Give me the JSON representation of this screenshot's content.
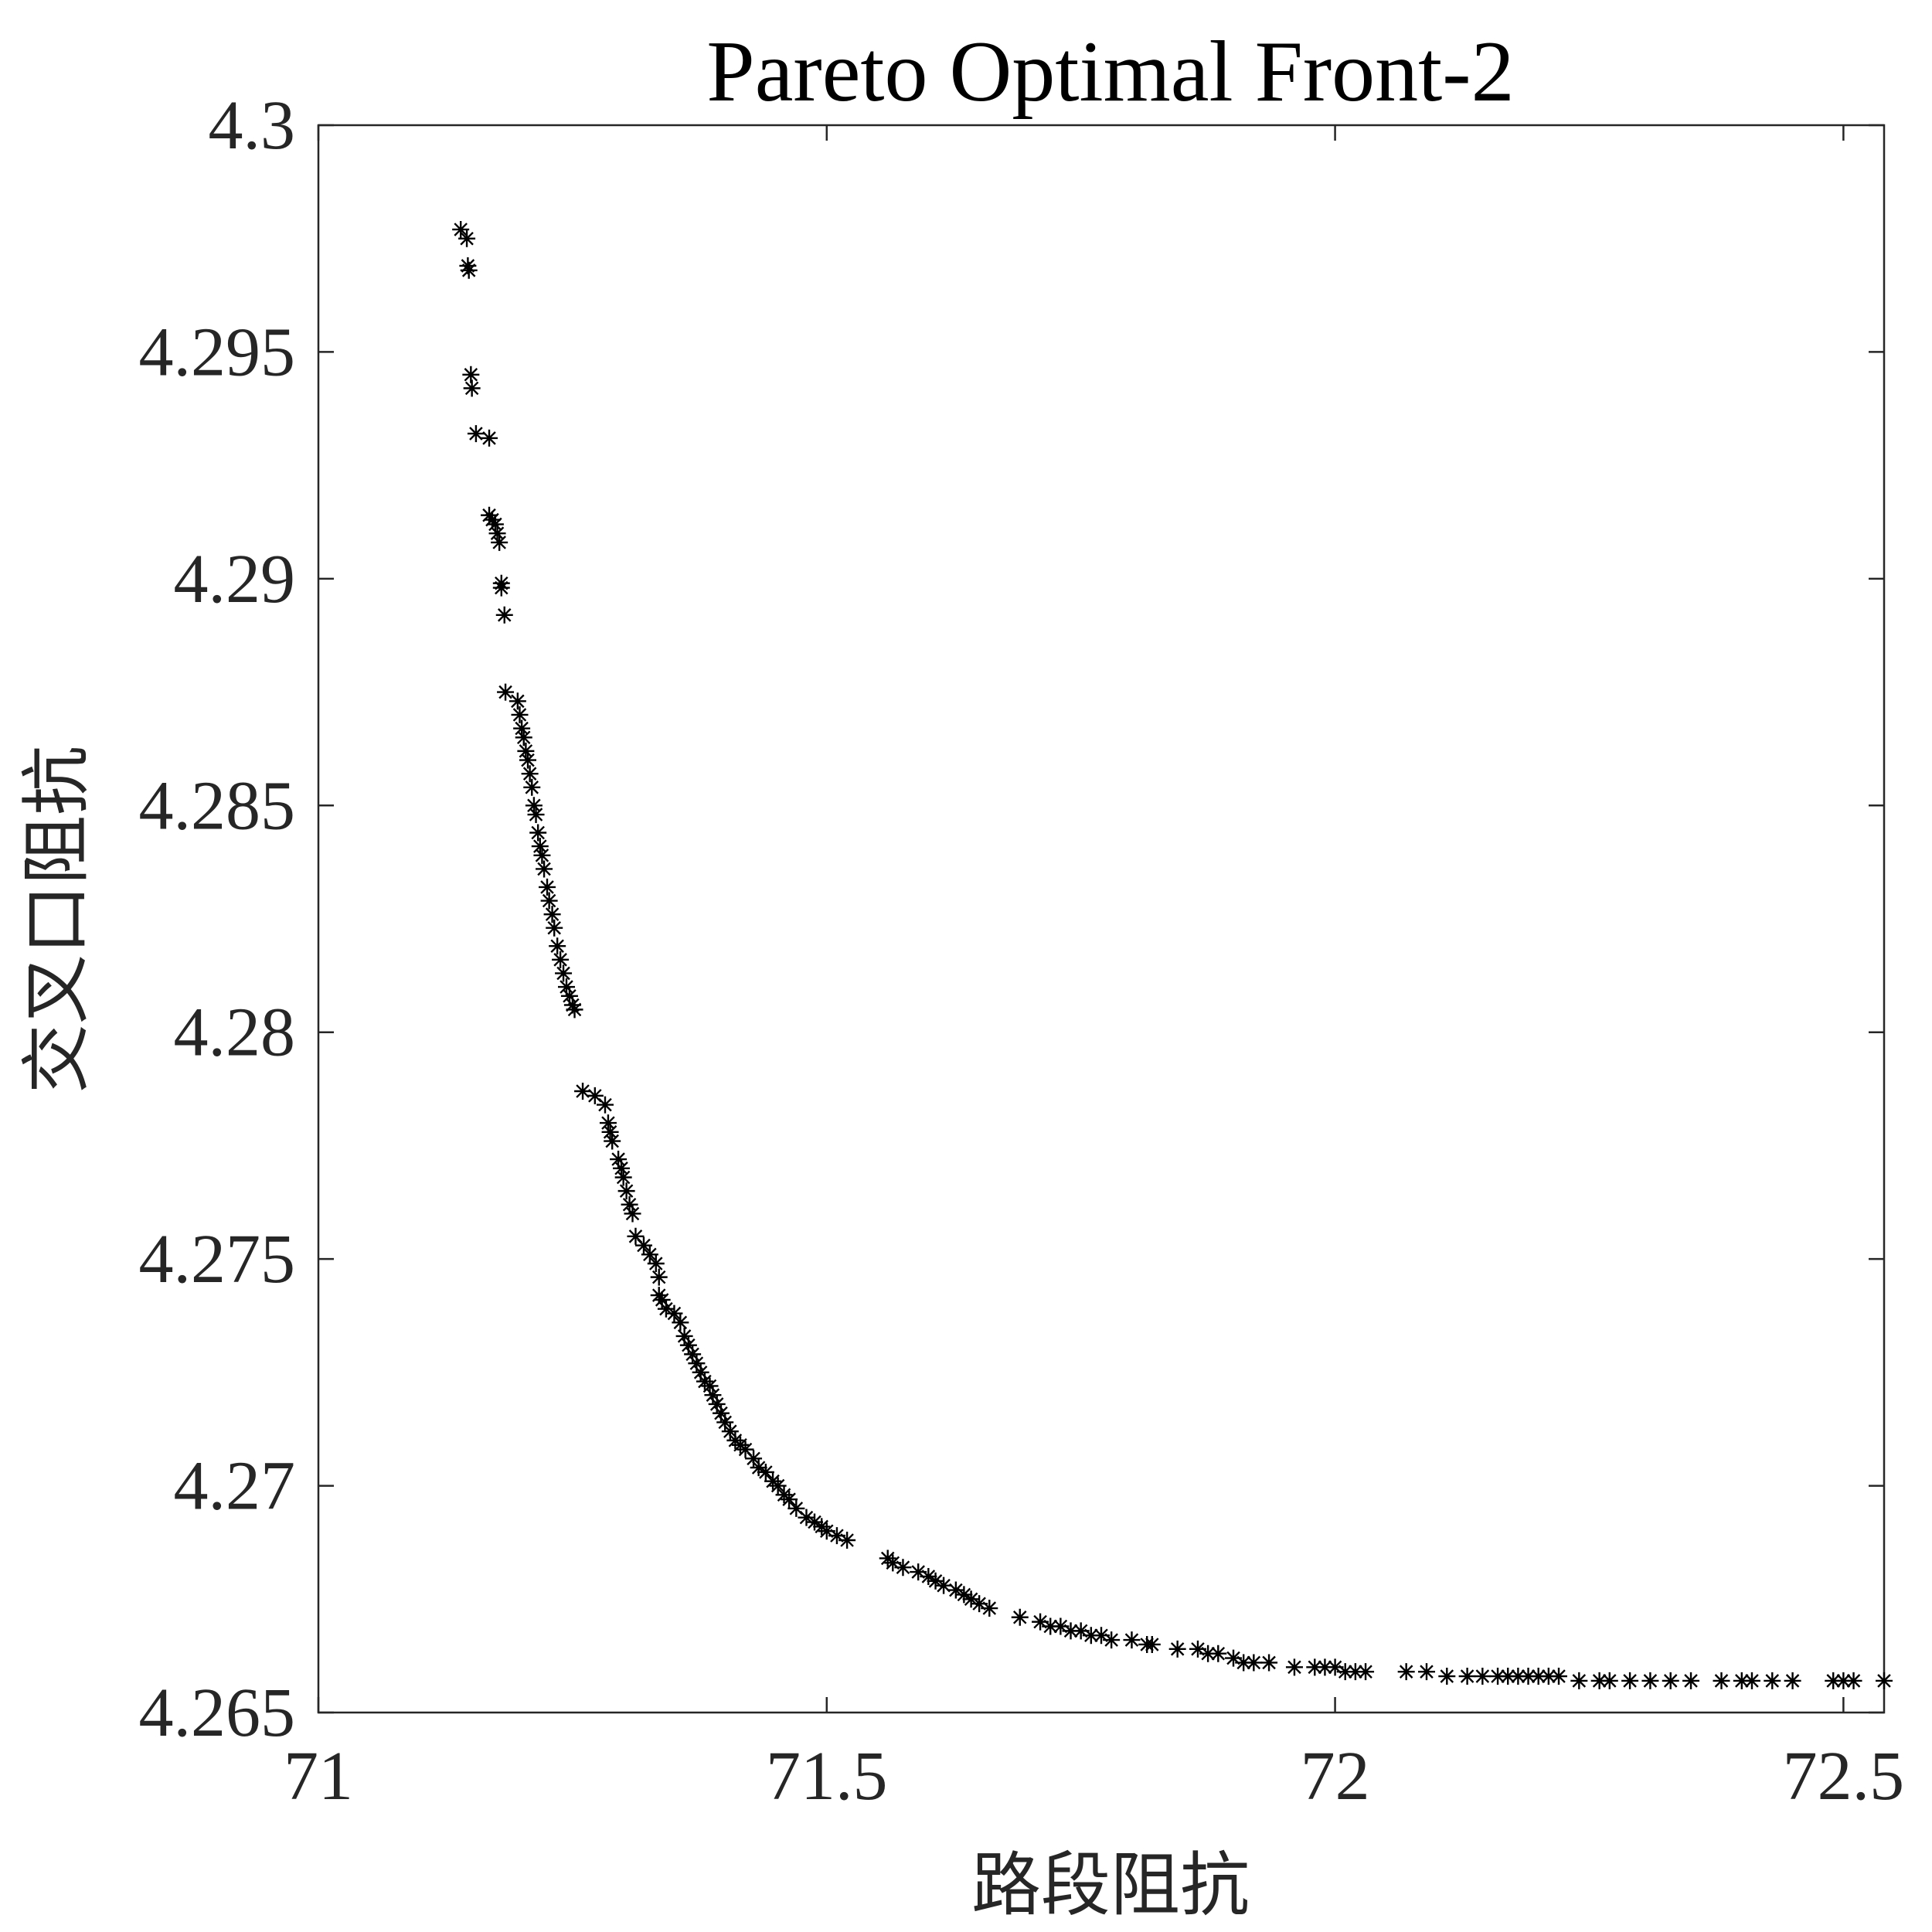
{
  "chart_data": {
    "type": "scatter",
    "title": "Pareto Optimal Front-2",
    "xlabel": "路段阻抗",
    "ylabel": "交叉口阻抗",
    "xlim": [
      71,
      72.54
    ],
    "ylim": [
      4.265,
      4.3
    ],
    "xticks": [
      "71",
      "71.5",
      "72",
      "72.5"
    ],
    "yticks": [
      "4.265",
      "4.27",
      "4.275",
      "4.28",
      "4.285",
      "4.29",
      "4.295",
      "4.3"
    ],
    "grid": false,
    "marker": "asterisk",
    "marker_color": "#000000",
    "series": [
      {
        "points": [
          [
            71.14,
            4.2977
          ],
          [
            71.146,
            4.2975
          ],
          [
            71.147,
            4.2969
          ],
          [
            71.148,
            4.2968
          ],
          [
            71.15,
            4.2945
          ],
          [
            71.151,
            4.2942
          ],
          [
            71.155,
            4.2932
          ],
          [
            71.168,
            4.2931
          ],
          [
            71.168,
            4.2914
          ],
          [
            71.171,
            4.2913
          ],
          [
            71.174,
            4.2912
          ],
          [
            71.176,
            4.291
          ],
          [
            71.178,
            4.2908
          ],
          [
            71.18,
            4.2899
          ],
          [
            71.18,
            4.2898
          ],
          [
            71.183,
            4.2892
          ],
          [
            71.184,
            4.2875
          ],
          [
            71.196,
            4.2873
          ],
          [
            71.198,
            4.287
          ],
          [
            71.2,
            4.2867
          ],
          [
            71.202,
            4.2865
          ],
          [
            71.204,
            4.2862
          ],
          [
            71.206,
            4.286
          ],
          [
            71.208,
            4.2857
          ],
          [
            71.21,
            4.2854
          ],
          [
            71.212,
            4.285
          ],
          [
            71.214,
            4.2848
          ],
          [
            71.216,
            4.2844
          ],
          [
            71.218,
            4.2841
          ],
          [
            71.22,
            4.2839
          ],
          [
            71.222,
            4.2836
          ],
          [
            71.225,
            4.2832
          ],
          [
            71.227,
            4.2829
          ],
          [
            71.23,
            4.2826
          ],
          [
            71.232,
            4.2823
          ],
          [
            71.235,
            4.2819
          ],
          [
            71.238,
            4.2816
          ],
          [
            71.241,
            4.2813
          ],
          [
            71.244,
            4.281
          ],
          [
            71.247,
            4.2808
          ],
          [
            71.25,
            4.2806
          ],
          [
            71.252,
            4.2805
          ],
          [
            71.26,
            4.2787
          ],
          [
            71.272,
            4.2786
          ],
          [
            71.282,
            4.2784
          ],
          [
            71.285,
            4.278
          ],
          [
            71.287,
            4.2778
          ],
          [
            71.289,
            4.2776
          ],
          [
            71.295,
            4.2772
          ],
          [
            71.298,
            4.277
          ],
          [
            71.3,
            4.2768
          ],
          [
            71.303,
            4.2765
          ],
          [
            71.306,
            4.2762
          ],
          [
            71.309,
            4.276
          ],
          [
            71.312,
            4.2755
          ],
          [
            71.32,
            4.2753
          ],
          [
            71.326,
            4.2751
          ],
          [
            71.332,
            4.2749
          ],
          [
            71.335,
            4.2746
          ],
          [
            71.335,
            4.2742
          ],
          [
            71.338,
            4.2741
          ],
          [
            71.342,
            4.2739
          ],
          [
            71.35,
            4.2738
          ],
          [
            71.356,
            4.2736
          ],
          [
            71.36,
            4.2733
          ],
          [
            71.364,
            4.2731
          ],
          [
            71.368,
            4.2729
          ],
          [
            71.372,
            4.2727
          ],
          [
            71.376,
            4.2725
          ],
          [
            71.38,
            4.2723
          ],
          [
            71.385,
            4.2722
          ],
          [
            71.388,
            4.272
          ],
          [
            71.392,
            4.2718
          ],
          [
            71.396,
            4.2716
          ],
          [
            71.4,
            4.2714
          ],
          [
            71.405,
            4.2712
          ],
          [
            71.41,
            4.271
          ],
          [
            71.415,
            4.2709
          ],
          [
            71.42,
            4.2708
          ],
          [
            71.428,
            4.2706
          ],
          [
            71.433,
            4.2704
          ],
          [
            71.44,
            4.2703
          ],
          [
            71.447,
            4.2701
          ],
          [
            71.452,
            4.27
          ],
          [
            71.458,
            4.2698
          ],
          [
            71.463,
            4.2697
          ],
          [
            71.47,
            4.2695
          ],
          [
            71.48,
            4.2693
          ],
          [
            71.488,
            4.2692
          ],
          [
            71.495,
            4.2691
          ],
          [
            71.5,
            4.269
          ],
          [
            71.51,
            4.2689
          ],
          [
            71.52,
            4.2688
          ],
          [
            71.56,
            4.2684
          ],
          [
            71.565,
            4.2683
          ],
          [
            71.575,
            4.2682
          ],
          [
            71.59,
            4.2681
          ],
          [
            71.6,
            4.268
          ],
          [
            71.607,
            4.2679
          ],
          [
            71.615,
            4.2678
          ],
          [
            71.627,
            4.2677
          ],
          [
            71.635,
            4.2676
          ],
          [
            71.642,
            4.2675
          ],
          [
            71.65,
            4.2674
          ],
          [
            71.66,
            4.2673
          ],
          [
            71.69,
            4.2671
          ],
          [
            71.71,
            4.267
          ],
          [
            71.72,
            4.2669
          ],
          [
            71.73,
            4.2669
          ],
          [
            71.74,
            4.2668
          ],
          [
            71.75,
            4.2668
          ],
          [
            71.76,
            4.2667
          ],
          [
            71.77,
            4.2667
          ],
          [
            71.78,
            4.2666
          ],
          [
            71.8,
            4.2666
          ],
          [
            71.815,
            4.2665
          ],
          [
            71.82,
            4.2665
          ],
          [
            71.845,
            4.2664
          ],
          [
            71.865,
            4.2664
          ],
          [
            71.875,
            4.2663
          ],
          [
            71.885,
            4.2663
          ],
          [
            71.9,
            4.2662
          ],
          [
            71.91,
            4.2661
          ],
          [
            71.92,
            4.2661
          ],
          [
            71.935,
            4.2661
          ],
          [
            71.96,
            4.266
          ],
          [
            71.98,
            4.266
          ],
          [
            71.99,
            4.266
          ],
          [
            72.0,
            4.266
          ],
          [
            72.01,
            4.2659
          ],
          [
            72.02,
            4.2659
          ],
          [
            72.03,
            4.2659
          ],
          [
            72.07,
            4.2659
          ],
          [
            72.09,
            4.2659
          ],
          [
            72.11,
            4.2658
          ],
          [
            72.13,
            4.2658
          ],
          [
            72.145,
            4.2658
          ],
          [
            72.16,
            4.2658
          ],
          [
            72.17,
            4.2658
          ],
          [
            72.18,
            4.2658
          ],
          [
            72.19,
            4.2658
          ],
          [
            72.2,
            4.2658
          ],
          [
            72.21,
            4.2658
          ],
          [
            72.22,
            4.2658
          ],
          [
            72.24,
            4.2657
          ],
          [
            72.26,
            4.2657
          ],
          [
            72.27,
            4.2657
          ],
          [
            72.29,
            4.2657
          ],
          [
            72.31,
            4.2657
          ],
          [
            72.33,
            4.2657
          ],
          [
            72.35,
            4.2657
          ],
          [
            72.38,
            4.2657
          ],
          [
            72.4,
            4.2657
          ],
          [
            72.41,
            4.2657
          ],
          [
            72.43,
            4.2657
          ],
          [
            72.45,
            4.2657
          ],
          [
            72.49,
            4.2657
          ],
          [
            72.5,
            4.2657
          ],
          [
            72.51,
            4.2657
          ],
          [
            72.54,
            4.2657
          ]
        ]
      }
    ]
  }
}
